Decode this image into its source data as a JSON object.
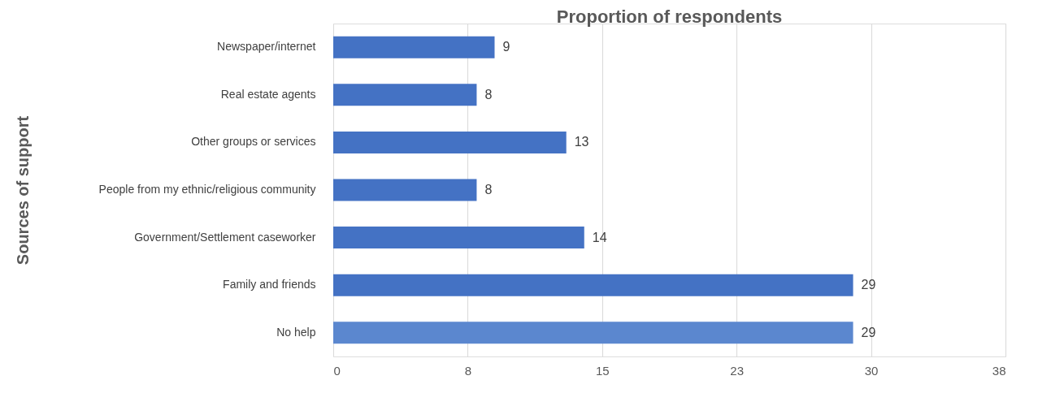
{
  "chart_data": {
    "type": "bar",
    "orientation": "horizontal",
    "title": "Proportion of respondents",
    "ylabel": "Sources of support",
    "categories": [
      "Newspaper/internet",
      "Real estate agents",
      "Other groups or services",
      "People from my ethnic/religious community",
      "Government/Settlement caseworker",
      "Family and friends",
      "No help"
    ],
    "values": [
      9,
      8,
      13,
      8,
      14,
      29,
      29
    ],
    "colors": [
      "#4472c4",
      "#4472c4",
      "#4472c4",
      "#4472c4",
      "#4472c4",
      "#4472c4",
      "#5b87cf"
    ],
    "xlim": [
      0,
      37.5
    ],
    "xticks": [
      0,
      {
        "value": 7.5,
        "label": "8"
      },
      15,
      {
        "value": 22.5,
        "label": "23"
      },
      30,
      {
        "value": 37.5,
        "label": "38"
      }
    ],
    "grid": "x",
    "data_labels": true
  }
}
